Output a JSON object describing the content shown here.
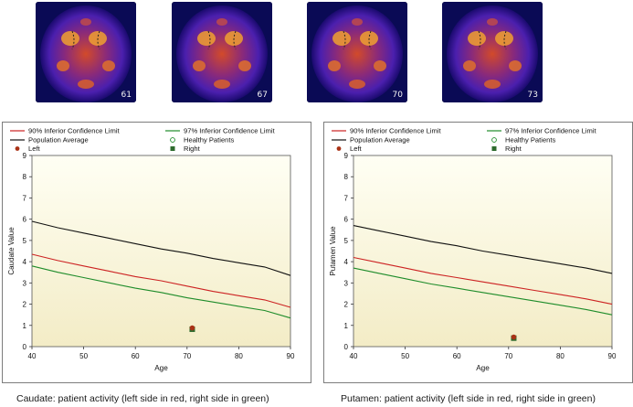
{
  "scans": [
    {
      "slice": "61"
    },
    {
      "slice": "67"
    },
    {
      "slice": "70"
    },
    {
      "slice": "73"
    }
  ],
  "legend": {
    "limit90": "90% Inferior Confidence Limit",
    "limit97": "97% Inferior Confidence Limit",
    "population": "Population Average",
    "healthy": "Healthy Patients",
    "left": "Left",
    "right": "Right"
  },
  "colors": {
    "limit90": "#cc2222",
    "limit97": "#1e8c2a",
    "population": "#111111",
    "left": "#a93216",
    "right": "#2e6b2e",
    "plot_bg_top": "#fffff4",
    "plot_bg_bottom": "#f3ecc6"
  },
  "captions": [
    "Caudate: patient activity (left side in red, right side in green)",
    "Putamen: patient activity (left side in red, right side in green)"
  ],
  "chart_data": [
    {
      "type": "line",
      "xlabel": "Age",
      "ylabel": "Caudate Value",
      "xlim": [
        40,
        90
      ],
      "ylim": [
        0,
        9
      ],
      "xticks": [
        40,
        50,
        60,
        70,
        80,
        90
      ],
      "yticks": [
        0,
        1,
        2,
        3,
        4,
        5,
        6,
        7,
        8,
        9
      ],
      "grid": false,
      "x": [
        40,
        45,
        50,
        55,
        60,
        65,
        70,
        75,
        80,
        85,
        90
      ],
      "series": [
        {
          "name": "Population Average",
          "key": "population",
          "values": [
            5.9,
            5.6,
            5.35,
            5.1,
            4.85,
            4.6,
            4.4,
            4.15,
            3.95,
            3.75,
            3.35
          ]
        },
        {
          "name": "90% Inferior Confidence Limit",
          "key": "limit90",
          "values": [
            4.35,
            4.05,
            3.8,
            3.55,
            3.3,
            3.1,
            2.85,
            2.6,
            2.4,
            2.2,
            1.85
          ]
        },
        {
          "name": "97% Inferior Confidence Limit",
          "key": "limit97",
          "values": [
            3.8,
            3.5,
            3.25,
            3.0,
            2.75,
            2.55,
            2.3,
            2.1,
            1.9,
            1.7,
            1.35
          ]
        }
      ],
      "points": [
        {
          "name": "Left",
          "key": "left",
          "x": 71,
          "y": 0.88
        },
        {
          "name": "Right",
          "key": "right",
          "x": 71,
          "y": 0.82
        }
      ]
    },
    {
      "type": "line",
      "xlabel": "Age",
      "ylabel": "Putamen Value",
      "xlim": [
        40,
        90
      ],
      "ylim": [
        0,
        9
      ],
      "xticks": [
        40,
        50,
        60,
        70,
        80,
        90
      ],
      "yticks": [
        0,
        1,
        2,
        3,
        4,
        5,
        6,
        7,
        8,
        9
      ],
      "grid": false,
      "x": [
        40,
        45,
        50,
        55,
        60,
        65,
        70,
        75,
        80,
        85,
        90
      ],
      "series": [
        {
          "name": "Population Average",
          "key": "population",
          "values": [
            5.7,
            5.45,
            5.2,
            4.95,
            4.75,
            4.5,
            4.3,
            4.1,
            3.9,
            3.7,
            3.45
          ]
        },
        {
          "name": "90% Inferior Confidence Limit",
          "key": "limit90",
          "values": [
            4.2,
            3.95,
            3.7,
            3.45,
            3.25,
            3.05,
            2.85,
            2.65,
            2.45,
            2.25,
            2.0
          ]
        },
        {
          "name": "97% Inferior Confidence Limit",
          "key": "limit97",
          "values": [
            3.7,
            3.45,
            3.2,
            2.95,
            2.75,
            2.55,
            2.35,
            2.15,
            1.95,
            1.75,
            1.5
          ]
        }
      ],
      "points": [
        {
          "name": "Left",
          "key": "left",
          "x": 71,
          "y": 0.45
        },
        {
          "name": "Right",
          "key": "right",
          "x": 71,
          "y": 0.4
        }
      ]
    }
  ]
}
